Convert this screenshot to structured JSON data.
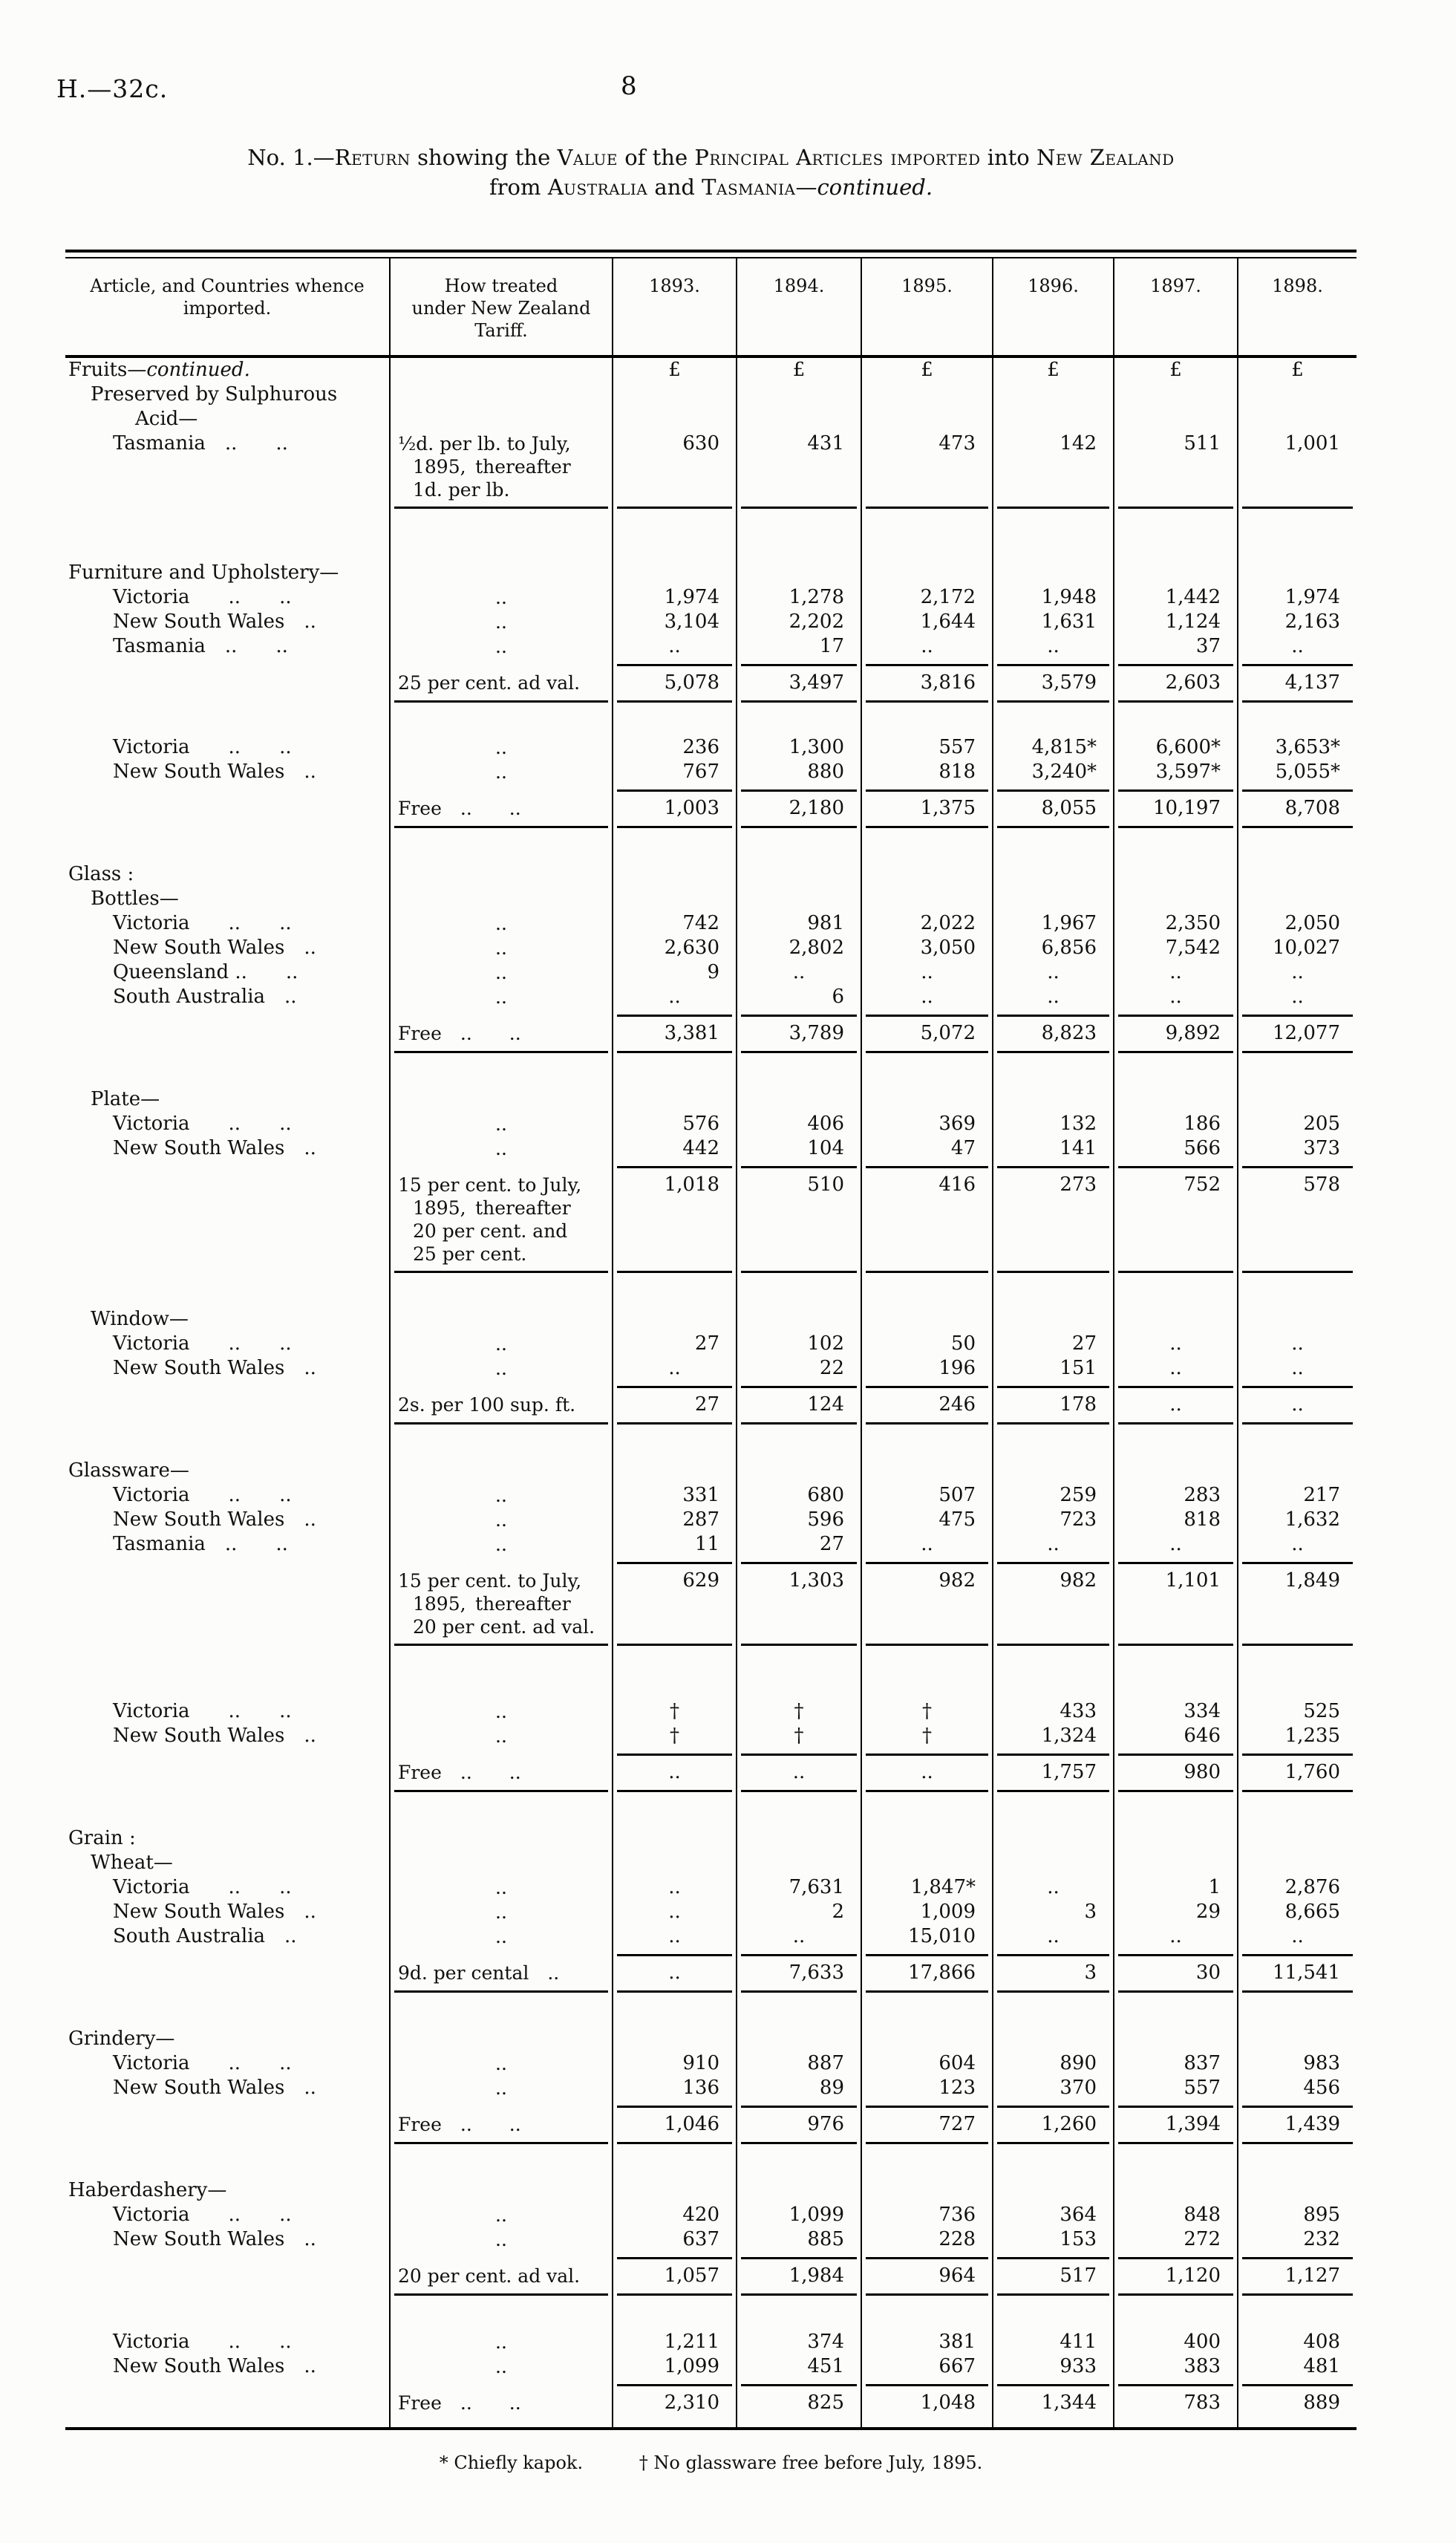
{
  "page": {
    "doc_ref": "H.—32c.",
    "page_number": "8"
  },
  "title": {
    "line1": {
      "segments": [
        {
          "t": "No. 1.—"
        },
        {
          "t": "Return",
          "sc": true
        },
        {
          "t": " showing the "
        },
        {
          "t": "Value",
          "sc": true
        },
        {
          "t": " of the "
        },
        {
          "t": "Principal Articles imported",
          "sc": true
        },
        {
          "t": " into "
        },
        {
          "t": "New Zealand",
          "sc": true
        }
      ]
    },
    "line2": {
      "segments": [
        {
          "t": "from "
        },
        {
          "t": "Australia",
          "sc": true
        },
        {
          "t": " and "
        },
        {
          "t": "Tasmania",
          "sc": true
        },
        {
          "t": "—"
        },
        {
          "t": "continued.",
          "i": true
        }
      ]
    }
  },
  "table": {
    "header": {
      "article_lines": [
        "Article, and Countries whence",
        "imported."
      ],
      "tariff_lines": [
        "How treated",
        "under New Zealand",
        "Tariff."
      ],
      "years": [
        "1893.",
        "1894.",
        "1895.",
        "1896.",
        "1897.",
        "1898."
      ]
    },
    "rows": [
      {
        "type": "row",
        "aseg": [
          {
            "t": "Fruits—"
          },
          {
            "t": "continued.",
            "i": true
          }
        ],
        "ai": 0,
        "v": [
          "£",
          "£",
          "£",
          "£",
          "£",
          "£"
        ]
      },
      {
        "type": "row",
        "a": "Preserved by Sulphurous",
        "ai": 1
      },
      {
        "type": "row",
        "a": "Acid—",
        "ai": 3
      },
      {
        "type": "row",
        "a": "Tasmania ..  ..",
        "ai": 2,
        "tl": [
          "½d. per lb. to July,",
          "1895, thereafter",
          "1d. per lb."
        ],
        "v": [
          "630",
          "431",
          "473",
          "142",
          "511",
          "1,001"
        ]
      },
      {
        "type": "rule",
        "cols": "tariff-years"
      },
      {
        "type": "gap",
        "h": 64
      },
      {
        "type": "row",
        "a": "Furniture and Upholstery—",
        "ai": 0
      },
      {
        "type": "row",
        "a": "Victoria  ..  ..",
        "ai": 2,
        "t": "..",
        "v": [
          "1,974",
          "1,278",
          "2,172",
          "1,948",
          "1,442",
          "1,974"
        ]
      },
      {
        "type": "row",
        "a": "New South Wales ..",
        "ai": 2,
        "t": "..",
        "v": [
          "3,104",
          "2,202",
          "1,644",
          "1,631",
          "1,124",
          "2,163"
        ]
      },
      {
        "type": "row",
        "a": "Tasmania ..  ..",
        "ai": 2,
        "t": "..",
        "v": [
          "..",
          "17",
          "..",
          "..",
          "37",
          ".."
        ]
      },
      {
        "type": "rule",
        "cols": "years"
      },
      {
        "type": "row",
        "t": "25 per cent. ad val.",
        "v": [
          "5,078",
          "3,497",
          "3,816",
          "3,579",
          "2,603",
          "4,137"
        ]
      },
      {
        "type": "rule",
        "cols": "tariff-years"
      },
      {
        "type": "gap",
        "h": 38
      },
      {
        "type": "row",
        "a": "Victoria  ..  ..",
        "ai": 2,
        "t": "..",
        "v": [
          "236",
          "1,300",
          "557",
          "4,815*",
          "6,600*",
          "3,653*"
        ]
      },
      {
        "type": "row",
        "a": "New South Wales ..",
        "ai": 2,
        "t": "..",
        "v": [
          "767",
          "880",
          "818",
          "3,240*",
          "3,597*",
          "5,055*"
        ]
      },
      {
        "type": "rule",
        "cols": "years"
      },
      {
        "type": "row",
        "t": "Free ..  ..",
        "v": [
          "1,003",
          "2,180",
          "1,375",
          "8,055",
          "10,197",
          "8,708"
        ]
      },
      {
        "type": "rule",
        "cols": "tariff-years"
      },
      {
        "type": "gap",
        "h": 40
      },
      {
        "type": "row",
        "a": "Glass :",
        "ai": 0
      },
      {
        "type": "row",
        "a": "Bottles—",
        "ai": 1
      },
      {
        "type": "row",
        "a": "Victoria  ..  ..",
        "ai": 2,
        "t": "..",
        "v": [
          "742",
          "981",
          "2,022",
          "1,967",
          "2,350",
          "2,050"
        ]
      },
      {
        "type": "row",
        "a": "New South Wales ..",
        "ai": 2,
        "t": "..",
        "v": [
          "2,630",
          "2,802",
          "3,050",
          "6,856",
          "7,542",
          "10,027"
        ]
      },
      {
        "type": "row",
        "a": "Queensland ..  ..",
        "ai": 2,
        "t": "..",
        "v": [
          "9",
          "..",
          "..",
          "..",
          "..",
          ".."
        ]
      },
      {
        "type": "row",
        "a": "South Australia ..",
        "ai": 2,
        "t": "..",
        "v": [
          "..",
          "6",
          "..",
          "..",
          "..",
          ".."
        ]
      },
      {
        "type": "rule",
        "cols": "years"
      },
      {
        "type": "row",
        "t": "Free ..  ..",
        "v": [
          "3,381",
          "3,789",
          "5,072",
          "8,823",
          "9,892",
          "12,077"
        ]
      },
      {
        "type": "rule",
        "cols": "tariff-years"
      },
      {
        "type": "gap",
        "h": 40
      },
      {
        "type": "row",
        "a": "Plate—",
        "ai": 1
      },
      {
        "type": "row",
        "a": "Victoria  ..  ..",
        "ai": 2,
        "t": "..",
        "v": [
          "576",
          "406",
          "369",
          "132",
          "186",
          "205"
        ]
      },
      {
        "type": "row",
        "a": "New South Wales ..",
        "ai": 2,
        "t": "..",
        "v": [
          "442",
          "104",
          "47",
          "141",
          "566",
          "373"
        ]
      },
      {
        "type": "rule",
        "cols": "years"
      },
      {
        "type": "row",
        "tl": [
          "15 per cent. to July,",
          "1895, thereafter",
          "20 per cent. and",
          "25 per cent."
        ],
        "v": [
          "1,018",
          "510",
          "416",
          "273",
          "752",
          "578"
        ]
      },
      {
        "type": "rule",
        "cols": "tariff-years"
      },
      {
        "type": "gap",
        "h": 40
      },
      {
        "type": "row",
        "a": "Window—",
        "ai": 1
      },
      {
        "type": "row",
        "a": "Victoria  ..  ..",
        "ai": 2,
        "t": "..",
        "v": [
          "27",
          "102",
          "50",
          "27",
          "..",
          ".."
        ]
      },
      {
        "type": "row",
        "a": "New South Wales ..",
        "ai": 2,
        "t": "..",
        "v": [
          "..",
          "22",
          "196",
          "151",
          "..",
          ".."
        ]
      },
      {
        "type": "rule",
        "cols": "years"
      },
      {
        "type": "row",
        "t": "2s. per 100 sup. ft.",
        "v": [
          "27",
          "124",
          "246",
          "178",
          "..",
          ".."
        ]
      },
      {
        "type": "rule",
        "cols": "tariff-years"
      },
      {
        "type": "gap",
        "h": 40
      },
      {
        "type": "row",
        "a": "Glassware—",
        "ai": 0
      },
      {
        "type": "row",
        "a": "Victoria  ..  ..",
        "ai": 2,
        "t": "..",
        "v": [
          "331",
          "680",
          "507",
          "259",
          "283",
          "217"
        ]
      },
      {
        "type": "row",
        "a": "New South Wales ..",
        "ai": 2,
        "t": "..",
        "v": [
          "287",
          "596",
          "475",
          "723",
          "818",
          "1,632"
        ]
      },
      {
        "type": "row",
        "a": "Tasmania ..  ..",
        "ai": 2,
        "t": "..",
        "v": [
          "11",
          "27",
          "..",
          "..",
          "..",
          ".."
        ]
      },
      {
        "type": "rule",
        "cols": "years"
      },
      {
        "type": "row",
        "tl": [
          "15 per cent. to July,",
          "1895, thereafter",
          "20 per cent. ad val."
        ],
        "v": [
          "629",
          "1,303",
          "982",
          "982",
          "1,101",
          "1,849"
        ]
      },
      {
        "type": "rule",
        "cols": "tariff-years"
      },
      {
        "type": "gap",
        "h": 66
      },
      {
        "type": "row",
        "a": "Victoria  ..  ..",
        "ai": 2,
        "t": "..",
        "v": [
          "†",
          "†",
          "†",
          "433",
          "334",
          "525"
        ]
      },
      {
        "type": "row",
        "a": "New South Wales ..",
        "ai": 2,
        "t": "..",
        "v": [
          "†",
          "†",
          "†",
          "1,324",
          "646",
          "1,235"
        ]
      },
      {
        "type": "rule",
        "cols": "years"
      },
      {
        "type": "row",
        "t": "Free ..  ..",
        "v": [
          "..",
          "..",
          "..",
          "1,757",
          "980",
          "1,760"
        ]
      },
      {
        "type": "rule",
        "cols": "tariff-years"
      },
      {
        "type": "gap",
        "h": 40
      },
      {
        "type": "row",
        "a": "Grain :",
        "ai": 0
      },
      {
        "type": "row",
        "a": "Wheat—",
        "ai": 1
      },
      {
        "type": "row",
        "a": "Victoria  ..  ..",
        "ai": 2,
        "t": "..",
        "v": [
          "..",
          "7,631",
          "1,847*",
          "..",
          "1",
          "2,876"
        ]
      },
      {
        "type": "row",
        "a": "New South Wales ..",
        "ai": 2,
        "t": "..",
        "v": [
          "..",
          "2",
          "1,009",
          "3",
          "29",
          "8,665"
        ]
      },
      {
        "type": "row",
        "a": "South Australia ..",
        "ai": 2,
        "t": "..",
        "v": [
          "..",
          "..",
          "15,010",
          "..",
          "..",
          ".."
        ]
      },
      {
        "type": "rule",
        "cols": "years"
      },
      {
        "type": "row",
        "t": "9d. per cental ..",
        "v": [
          "..",
          "7,633",
          "17,866",
          "3",
          "30",
          "11,541"
        ]
      },
      {
        "type": "rule",
        "cols": "tariff-years"
      },
      {
        "type": "gap",
        "h": 40
      },
      {
        "type": "row",
        "a": "Grindery—",
        "ai": 0
      },
      {
        "type": "row",
        "a": "Victoria  ..  ..",
        "ai": 2,
        "t": "..",
        "v": [
          "910",
          "887",
          "604",
          "890",
          "837",
          "983"
        ]
      },
      {
        "type": "row",
        "a": "New South Wales ..",
        "ai": 2,
        "t": "..",
        "v": [
          "136",
          "89",
          "123",
          "370",
          "557",
          "456"
        ]
      },
      {
        "type": "rule",
        "cols": "years"
      },
      {
        "type": "row",
        "t": "Free ..  ..",
        "v": [
          "1,046",
          "976",
          "727",
          "1,260",
          "1,394",
          "1,439"
        ]
      },
      {
        "type": "rule",
        "cols": "tariff-years"
      },
      {
        "type": "gap",
        "h": 40
      },
      {
        "type": "row",
        "a": "Haberdashery—",
        "ai": 0
      },
      {
        "type": "row",
        "a": "Victoria  ..  ..",
        "ai": 2,
        "t": "..",
        "v": [
          "420",
          "1,099",
          "736",
          "364",
          "848",
          "895"
        ]
      },
      {
        "type": "row",
        "a": "New South Wales ..",
        "ai": 2,
        "t": "..",
        "v": [
          "637",
          "885",
          "228",
          "153",
          "272",
          "232"
        ]
      },
      {
        "type": "rule",
        "cols": "years"
      },
      {
        "type": "row",
        "t": "20 per cent. ad val.",
        "v": [
          "1,057",
          "1,984",
          "964",
          "517",
          "1,120",
          "1,127"
        ]
      },
      {
        "type": "rule",
        "cols": "tariff-years"
      },
      {
        "type": "gap",
        "h": 40
      },
      {
        "type": "row",
        "a": "Victoria  ..  ..",
        "ai": 2,
        "t": "..",
        "v": [
          "1,211",
          "374",
          "381",
          "411",
          "400",
          "408"
        ]
      },
      {
        "type": "row",
        "a": "New South Wales ..",
        "ai": 2,
        "t": "..",
        "v": [
          "1,099",
          "451",
          "667",
          "933",
          "383",
          "481"
        ]
      },
      {
        "type": "rule",
        "cols": "years"
      },
      {
        "type": "row",
        "t": "Free ..  ..",
        "v": [
          "2,310",
          "825",
          "1,048",
          "1,344",
          "783",
          "889"
        ]
      },
      {
        "type": "gap",
        "h": 16
      }
    ]
  },
  "footnotes": {
    "note1": "* Chiefly kapok.",
    "note2": "† No glassware free before July, 1895."
  }
}
